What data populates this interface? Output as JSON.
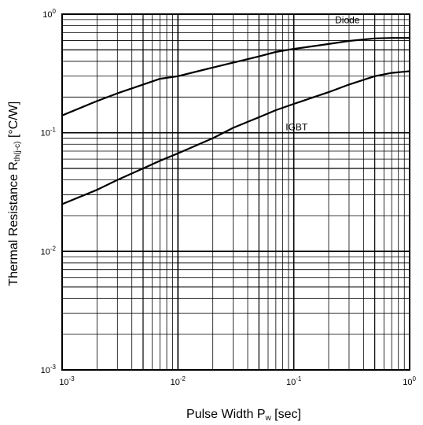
{
  "chart_data": {
    "type": "line",
    "xscale": "log",
    "yscale": "log",
    "xlim": [
      0.001,
      1
    ],
    "ylim": [
      0.001,
      1
    ],
    "grid": true,
    "xlabel": {
      "main": "Pulse Width P",
      "sub": "w",
      "unit": " [sec]"
    },
    "ylabel": {
      "main": "Thermal Resistance R",
      "sub": "th(j-c)",
      "unit": " [°C/W]"
    },
    "x_ticks": [
      {
        "value": 0.001,
        "base": "10",
        "exp": "-3"
      },
      {
        "value": 0.01,
        "base": "10",
        "exp": "-2"
      },
      {
        "value": 0.1,
        "base": "10",
        "exp": "-1"
      },
      {
        "value": 1,
        "base": "10",
        "exp": "0"
      }
    ],
    "y_ticks": [
      {
        "value": 0.001,
        "base": "10",
        "exp": "-3"
      },
      {
        "value": 0.01,
        "base": "10",
        "exp": "-2"
      },
      {
        "value": 0.1,
        "base": "10",
        "exp": "-1"
      },
      {
        "value": 1,
        "base": "10",
        "exp": "0"
      }
    ],
    "series": [
      {
        "name": "Diode",
        "x": [
          0.001,
          0.002,
          0.003,
          0.005,
          0.007,
          0.01,
          0.02,
          0.03,
          0.05,
          0.07,
          0.1,
          0.2,
          0.3,
          0.5,
          0.7,
          1
        ],
        "y": [
          0.14,
          0.185,
          0.215,
          0.255,
          0.285,
          0.3,
          0.355,
          0.39,
          0.44,
          0.48,
          0.51,
          0.56,
          0.595,
          0.625,
          0.63,
          0.63
        ]
      },
      {
        "name": "IGBT",
        "x": [
          0.001,
          0.002,
          0.003,
          0.005,
          0.007,
          0.01,
          0.02,
          0.03,
          0.05,
          0.07,
          0.1,
          0.2,
          0.3,
          0.5,
          0.7,
          1
        ],
        "y": [
          0.025,
          0.033,
          0.04,
          0.05,
          0.058,
          0.067,
          0.09,
          0.11,
          0.135,
          0.155,
          0.175,
          0.22,
          0.255,
          0.3,
          0.32,
          0.33
        ]
      }
    ]
  }
}
